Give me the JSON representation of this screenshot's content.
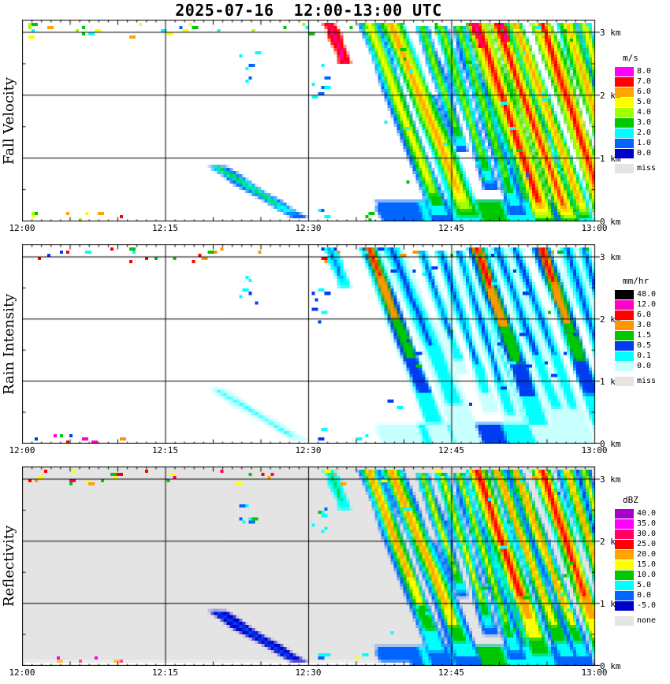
{
  "chart_data": {
    "type": "heatmap",
    "title": "2025-07-16  12:00-13:00 UTC",
    "x_axis": {
      "ticks": [
        "12:00",
        "12:15",
        "12:30",
        "12:45",
        "13:00"
      ],
      "range_minutes": [
        0,
        60
      ]
    },
    "y_axis": {
      "ticks": [
        "0 km",
        "1 km",
        "2 km",
        "3 km"
      ],
      "range_km": [
        0,
        3.2
      ]
    },
    "panels": [
      {
        "key": "fall_velocity",
        "label": "Fall Velocity",
        "unit": "m/s",
        "bg": "#ffffff",
        "depth": 4,
        "missing_label": "miss",
        "missing_color": "#e4e4e4",
        "levels": [
          {
            "value": "0.0",
            "color": "#0000cd"
          },
          {
            "value": "1.0",
            "color": "#0064ff"
          },
          {
            "value": "2.0",
            "color": "#00ffff"
          },
          {
            "value": "3.0",
            "color": "#00c800"
          },
          {
            "value": "4.0",
            "color": "#a0ff00"
          },
          {
            "value": "5.0",
            "color": "#ffff00"
          },
          {
            "value": "6.0",
            "color": "#ffa500"
          },
          {
            "value": "7.0",
            "color": "#ff0000"
          },
          {
            "value": "8.0",
            "color": "#ff00ff"
          }
        ]
      },
      {
        "key": "rain_intensity",
        "label": "Rain Intensity",
        "unit": "mm/hr",
        "bg": "#ffffff",
        "depth": 5,
        "missing_label": "miss",
        "missing_color": "#e4e4e4",
        "levels": [
          {
            "value": "0.0",
            "color": "#c8ffff"
          },
          {
            "value": "0.1",
            "color": "#00ffff"
          },
          {
            "value": "0.5",
            "color": "#003cf0"
          },
          {
            "value": "1.5",
            "color": "#00c800"
          },
          {
            "value": "3.0",
            "color": "#ff9600"
          },
          {
            "value": "6.0",
            "color": "#ff0000"
          },
          {
            "value": "12.0",
            "color": "#ff00c8"
          },
          {
            "value": "48.0",
            "color": "#000000"
          }
        ]
      },
      {
        "key": "reflectivity",
        "label": "Reflectivity",
        "unit": "dBZ",
        "bg": "#e4e4e4",
        "depth": 4,
        "bottom_white": true,
        "missing_label": "none",
        "missing_color": "#e4e4e4",
        "levels": [
          {
            "value": "-5.0",
            "color": "#0000cd"
          },
          {
            "value": "0.0",
            "color": "#0064ff"
          },
          {
            "value": "5.0",
            "color": "#00ffff"
          },
          {
            "value": "10.0",
            "color": "#00c800"
          },
          {
            "value": "15.0",
            "color": "#ffff00"
          },
          {
            "value": "20.0",
            "color": "#ffa500"
          },
          {
            "value": "25.0",
            "color": "#ff0000"
          },
          {
            "value": "30.0",
            "color": "#ff0064"
          },
          {
            "value": "35.0",
            "color": "#ff00ff"
          },
          {
            "value": "40.0",
            "color": "#aa00cc"
          }
        ]
      }
    ],
    "events": [
      {
        "name": "low-level-arc-1220",
        "t": 20.3,
        "ht": 0.88,
        "hb": 0.05,
        "dur": 8.8,
        "w": 1.9,
        "c": [
          0.38,
          0.1,
          0.13
        ],
        "taper": [
          0.25,
          0.1,
          0.1
        ],
        "d": 2
      },
      {
        "name": "top-blob-1232",
        "t": 32.2,
        "ht": 3.15,
        "hb": 2.5,
        "dur": 1.6,
        "w": 1.2,
        "c": [
          0.97,
          0.3,
          0.36
        ],
        "taper": [
          0,
          0.2,
          0.2
        ],
        "d": 1
      },
      {
        "name": "fallstreak-1236",
        "t": 36.3,
        "ht": 3.15,
        "hb": 0.0,
        "dur": 7.8,
        "w": 2.1,
        "c": [
          0.64,
          0.74,
          0.6
        ],
        "taper": [
          0.2,
          0.85,
          0.45
        ]
      },
      {
        "name": "fallstreak-1238",
        "t": 38.6,
        "ht": 3.15,
        "hb": 0.0,
        "dur": 8.4,
        "w": 2.6,
        "c": [
          0.72,
          0.33,
          0.55
        ],
        "taper": [
          0.15,
          0.5,
          0.3
        ]
      },
      {
        "name": "patch-1242",
        "t": 41.8,
        "ht": 3.1,
        "hb": 1.1,
        "dur": 4.5,
        "w": 1.3,
        "c": [
          0.5,
          0.28,
          0.4
        ],
        "taper": [
          0.2,
          0.3,
          0.2
        ],
        "d": 3
      },
      {
        "name": "patch-1244",
        "t": 43.8,
        "ht": 3.1,
        "hb": 0.5,
        "dur": 5.5,
        "w": 1.5,
        "c": [
          0.52,
          0.28,
          0.42
        ],
        "taper": [
          0.2,
          0.3,
          0.2
        ],
        "d": 3
      },
      {
        "name": "patch-1246",
        "t": 45.7,
        "ht": 3.1,
        "hb": 0.1,
        "dur": 6.2,
        "w": 1.5,
        "c": [
          0.55,
          0.28,
          0.45
        ],
        "taper": [
          0.2,
          0.3,
          0.2
        ],
        "d": 3
      },
      {
        "name": "fallstreak-1248",
        "t": 47.6,
        "ht": 3.15,
        "hb": 0.0,
        "dur": 7.2,
        "w": 2.3,
        "c": [
          0.9,
          0.77,
          0.68
        ],
        "taper": [
          0.1,
          0.8,
          0.35
        ]
      },
      {
        "name": "magenta-tip-1248",
        "t": 47.4,
        "ht": 3.15,
        "hb": 2.75,
        "dur": 0.9,
        "w": 1.0,
        "c": [
          0.99,
          0.3,
          0.45
        ],
        "taper": [
          0,
          0,
          0
        ],
        "d": 1
      },
      {
        "name": "fallstreak-1250",
        "t": 49.7,
        "ht": 3.15,
        "hb": 0.0,
        "dur": 7.6,
        "w": 1.9,
        "c": [
          0.86,
          0.34,
          0.58
        ],
        "taper": [
          0.08,
          0.45,
          0.3
        ]
      },
      {
        "name": "magenta-tip-1250",
        "t": 50.1,
        "ht": 3.15,
        "hb": 2.85,
        "dur": 0.7,
        "w": 0.8,
        "c": [
          0.99,
          0.3,
          0.45
        ],
        "taper": [
          0,
          0,
          0
        ],
        "d": 1
      },
      {
        "name": "fallstreak-1252",
        "t": 51.6,
        "ht": 3.15,
        "hb": 0.0,
        "dur": 7.6,
        "w": 1.7,
        "c": [
          0.8,
          0.33,
          0.53
        ],
        "taper": [
          0.1,
          0.45,
          0.3
        ]
      },
      {
        "name": "fallstreak-1254",
        "t": 54.4,
        "ht": 3.15,
        "hb": 0.0,
        "dur": 7.0,
        "w": 2.2,
        "c": [
          0.88,
          0.75,
          0.66
        ],
        "taper": [
          0.1,
          0.82,
          0.35
        ]
      },
      {
        "name": "fallstreak-1257",
        "t": 57.0,
        "ht": 3.15,
        "hb": 0.0,
        "dur": 6.5,
        "w": 1.8,
        "c": [
          0.72,
          0.34,
          0.5
        ],
        "taper": [
          0.15,
          0.45,
          0.3
        ]
      },
      {
        "name": "fallstreak-1259",
        "t": 58.8,
        "ht": 3.15,
        "hb": 0.0,
        "dur": 6.0,
        "w": 1.6,
        "c": [
          0.62,
          0.3,
          0.45
        ],
        "taper": [
          0.2,
          0.4,
          0.3
        ]
      },
      {
        "name": "fill-low-1",
        "t": 42.5,
        "ht": 2.0,
        "hb": 0.0,
        "dur": 5.0,
        "w": 1.1,
        "c": [
          0.35,
          0.2,
          0.3
        ],
        "taper": [
          0,
          0,
          0
        ],
        "d": 2
      },
      {
        "name": "fill-low-2",
        "t": 48.5,
        "ht": 2.2,
        "hb": 0.0,
        "dur": 5.0,
        "w": 1.0,
        "c": [
          0.35,
          0.2,
          0.3
        ],
        "taper": [
          0,
          0,
          0
        ],
        "d": 2
      },
      {
        "name": "fill-low-3",
        "t": 53.3,
        "ht": 2.4,
        "hb": 0.0,
        "dur": 5.0,
        "w": 1.1,
        "c": [
          0.4,
          0.2,
          0.33
        ],
        "taper": [
          0,
          0,
          0
        ],
        "d": 2
      },
      {
        "name": "ground-band",
        "t": 48.0,
        "ht": 0.32,
        "hb": 0.0,
        "dur": 0.6,
        "w": 22.0,
        "c": [
          0.42,
          0.3,
          0.33
        ],
        "taper": [
          0,
          0,
          0
        ],
        "d": 2
      }
    ],
    "specks": [
      {
        "t0": 0.5,
        "t1": 35.5,
        "h0": 2.9,
        "h1": 3.12,
        "n": 26,
        "lv": [
          0.15,
          0.8
        ]
      },
      {
        "t0": 36.0,
        "t1": 59.5,
        "h0": 2.95,
        "h1": 3.12,
        "n": 10,
        "lv": [
          0.2,
          0.6
        ]
      },
      {
        "t0": 0.2,
        "t1": 10.5,
        "h0": 0.0,
        "h1": 0.1,
        "n": 8,
        "lv": [
          0.3,
          0.97
        ]
      },
      {
        "t0": 22.6,
        "t1": 24.4,
        "h0": 2.2,
        "h1": 2.65,
        "n": 7,
        "lv": [
          0.08,
          0.3
        ]
      },
      {
        "t0": 30.1,
        "t1": 31.8,
        "h0": 1.9,
        "h1": 2.5,
        "n": 7,
        "lv": [
          0.08,
          0.3
        ]
      },
      {
        "t0": 30.8,
        "t1": 31.6,
        "h0": 0.0,
        "h1": 0.25,
        "n": 3,
        "lv": [
          0.1,
          0.3
        ]
      },
      {
        "t0": 34.8,
        "t1": 36.2,
        "h0": 0.0,
        "h1": 0.15,
        "n": 3,
        "lv": [
          0.15,
          0.4
        ]
      },
      {
        "t0": 38.0,
        "t1": 58.0,
        "h0": 0.5,
        "h1": 2.9,
        "n": 30,
        "lv": [
          0.15,
          0.4
        ]
      }
    ]
  }
}
